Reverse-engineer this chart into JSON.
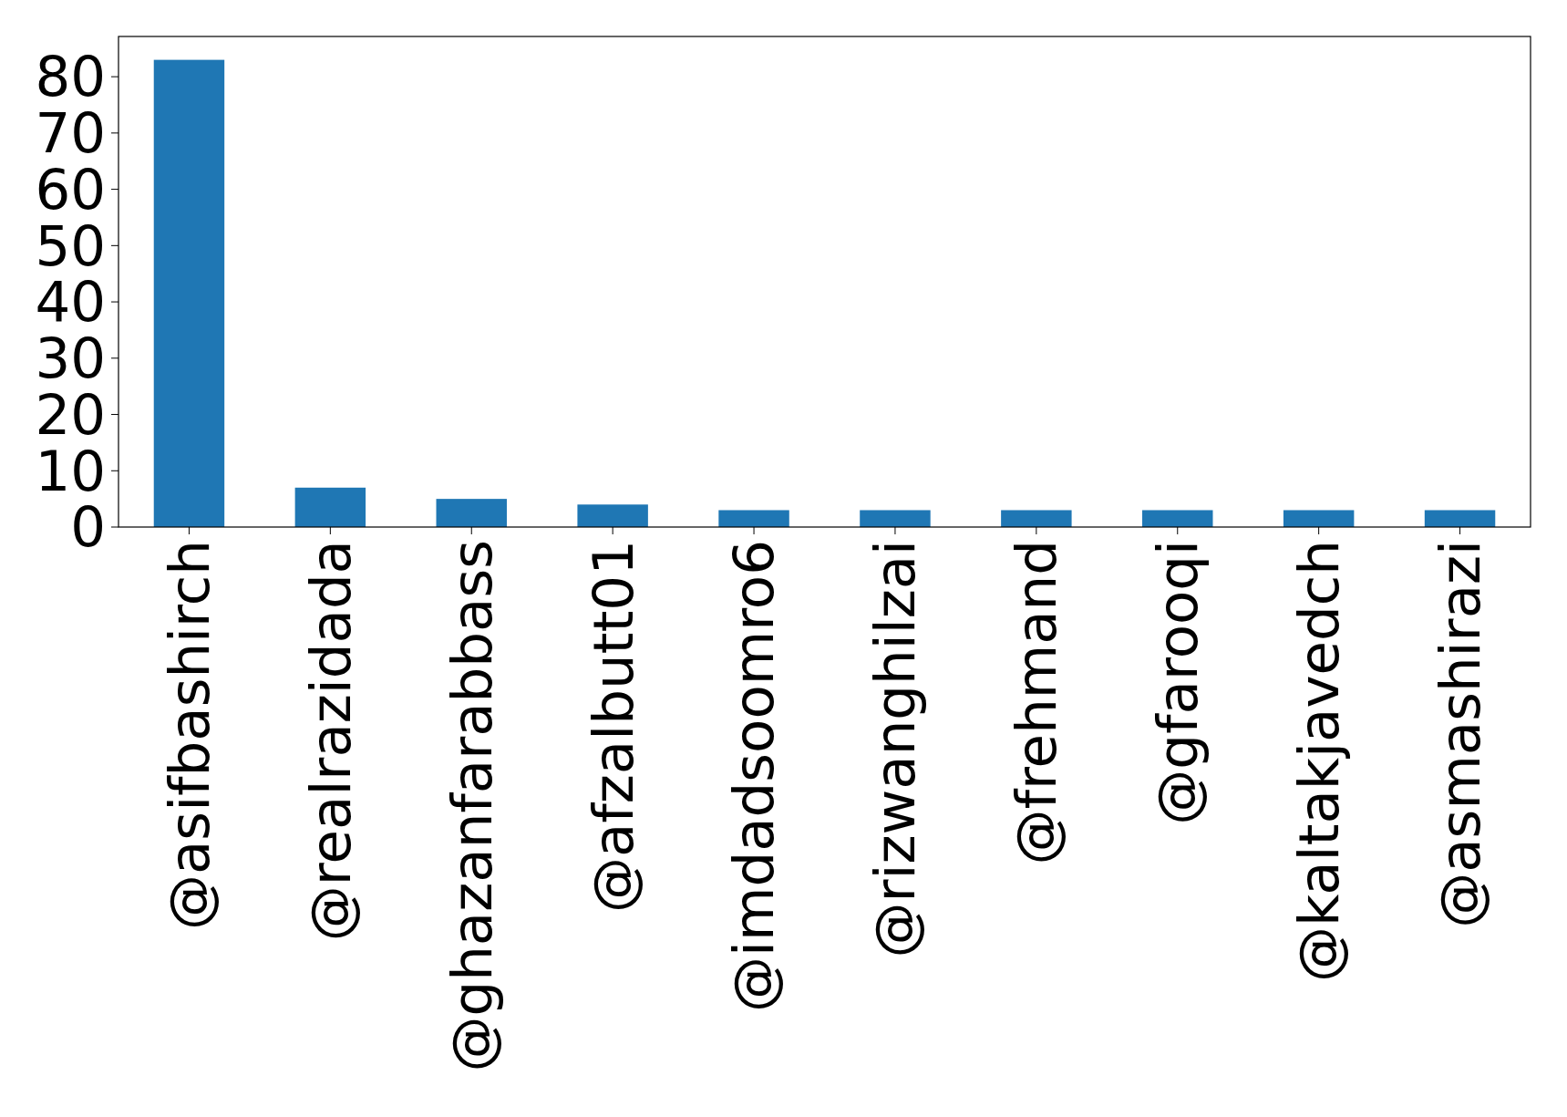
{
  "chart_data": {
    "type": "bar",
    "categories": [
      "@asifbashirch",
      "@realrazidada",
      "@ghazanfarabbass",
      "@afzalbutt01",
      "@imdadsoomro6",
      "@rizwanghilzai",
      "@frehmand",
      "@gfarooqi",
      "@kaltakjavedch",
      "@asmashirazi"
    ],
    "values": [
      83,
      7,
      5,
      4,
      3,
      3,
      3,
      3,
      3,
      3
    ],
    "color": "#1f77b4",
    "ylim": [
      0,
      87.15
    ],
    "yticks": [
      0,
      10,
      20,
      30,
      40,
      50,
      60,
      70,
      80
    ],
    "grid": false
  }
}
